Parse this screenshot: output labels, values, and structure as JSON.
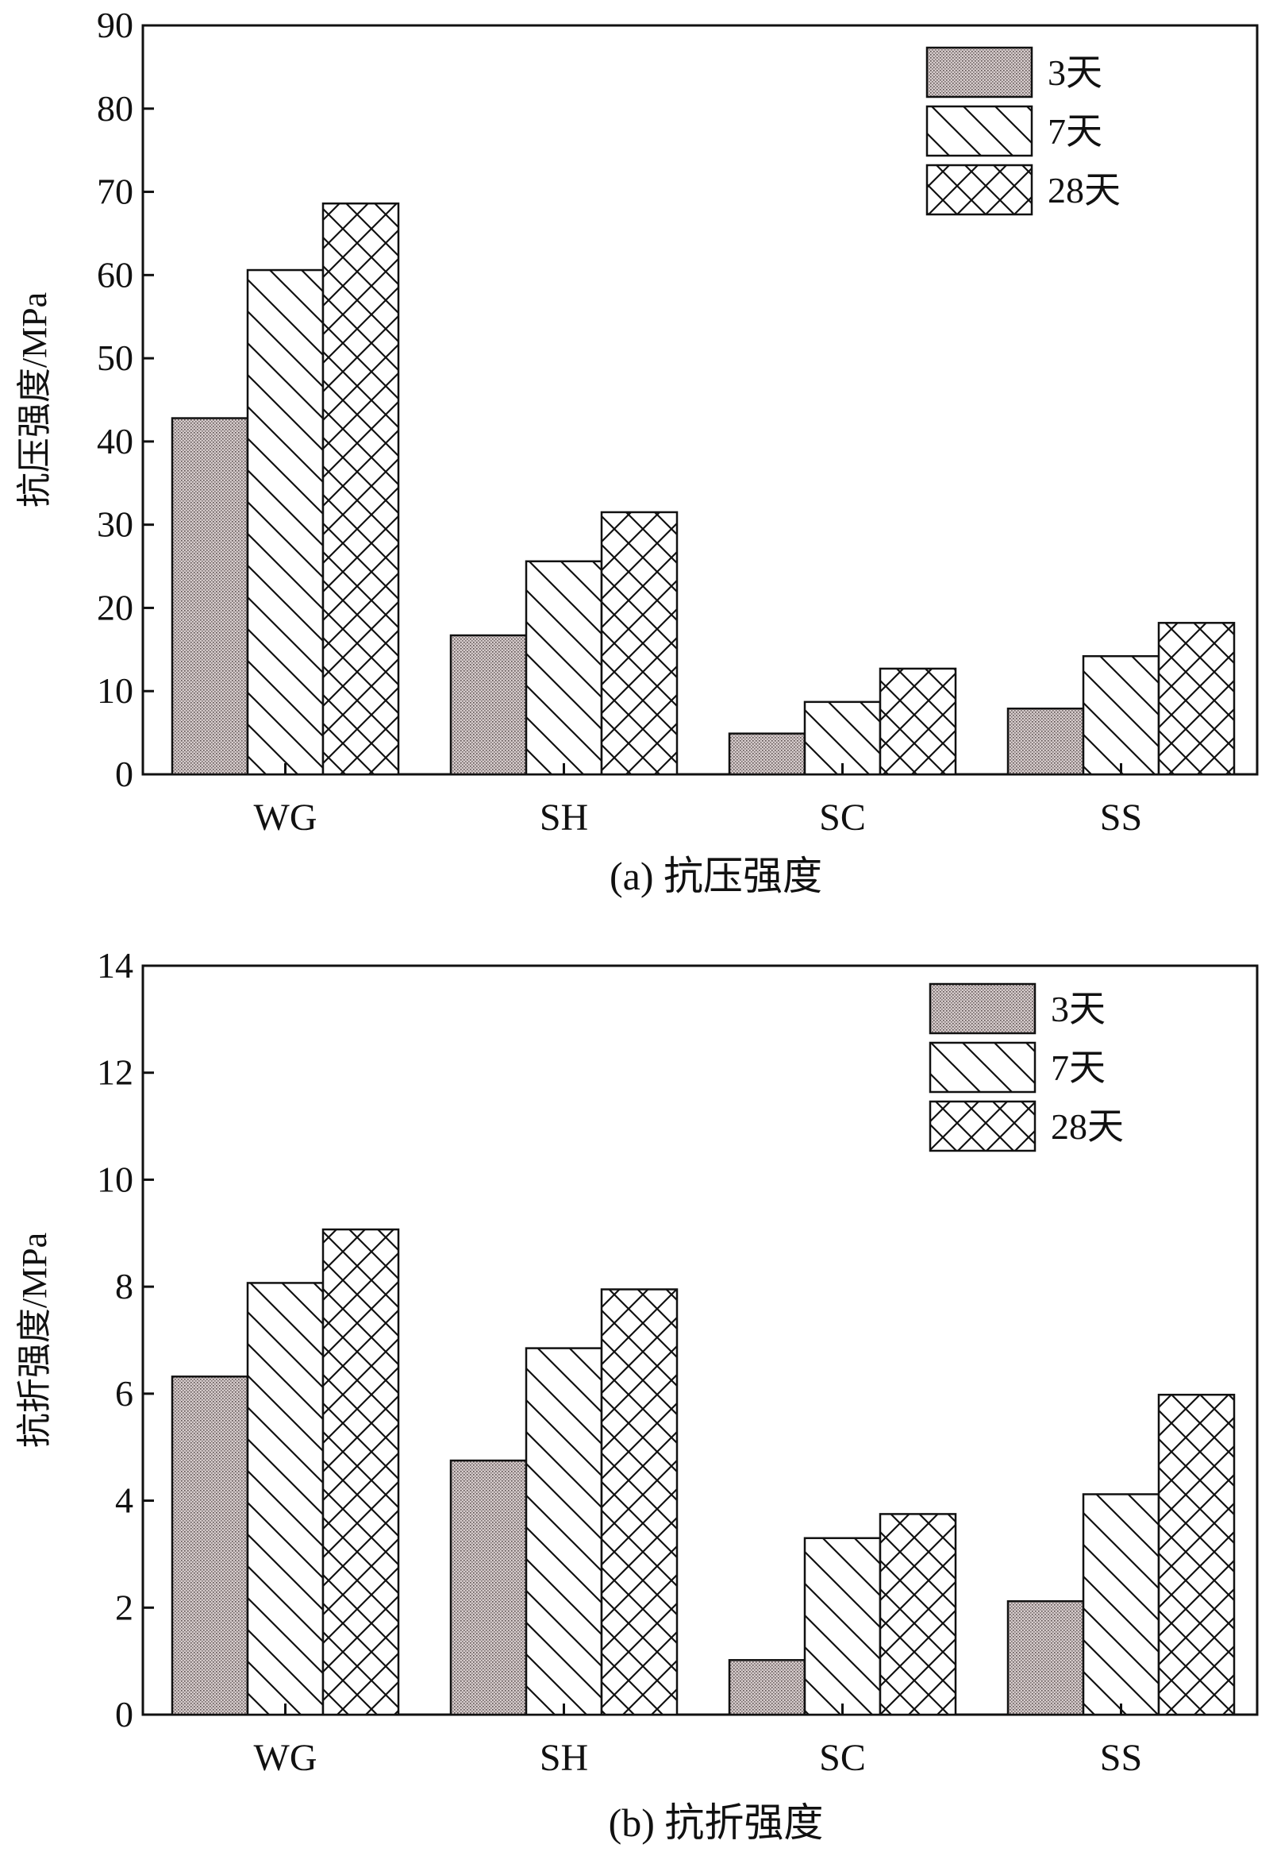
{
  "chart_data": [
    {
      "type": "bar",
      "caption": "(a) 抗压强度",
      "ylabel": "抗压强度/MPa",
      "xlabel": "",
      "categories": [
        "WG",
        "SH",
        "SC",
        "SS"
      ],
      "ylim": [
        0,
        90
      ],
      "yticks": [
        0,
        10,
        20,
        30,
        40,
        50,
        60,
        70,
        80,
        90
      ],
      "legend_position": "top-right",
      "series": [
        {
          "name": "3天",
          "pattern": "dotted",
          "color": "#c8bcbc",
          "values": [
            42.8,
            16.7,
            4.9,
            7.9
          ]
        },
        {
          "name": "7天",
          "pattern": "hatch-diagonal",
          "color": "#ffffff",
          "values": [
            60.6,
            25.6,
            8.7,
            14.2
          ]
        },
        {
          "name": "28天",
          "pattern": "cross-hatch",
          "color": "#ffffff",
          "values": [
            68.6,
            31.5,
            12.7,
            18.2
          ]
        }
      ]
    },
    {
      "type": "bar",
      "caption": "(b) 抗折强度",
      "ylabel": "抗折强度/MPa",
      "xlabel": "",
      "categories": [
        "WG",
        "SH",
        "SC",
        "SS"
      ],
      "ylim": [
        0,
        14
      ],
      "yticks": [
        0,
        2,
        4,
        6,
        8,
        10,
        12,
        14
      ],
      "legend_position": "top-right",
      "series": [
        {
          "name": "3天",
          "pattern": "dotted",
          "color": "#c8bcbc",
          "values": [
            6.32,
            4.75,
            1.02,
            2.12
          ]
        },
        {
          "name": "7天",
          "pattern": "hatch-diagonal",
          "color": "#ffffff",
          "values": [
            8.07,
            6.85,
            3.3,
            4.12
          ]
        },
        {
          "name": "28天",
          "pattern": "cross-hatch",
          "color": "#ffffff",
          "values": [
            9.07,
            7.95,
            3.75,
            5.98
          ]
        }
      ]
    }
  ]
}
